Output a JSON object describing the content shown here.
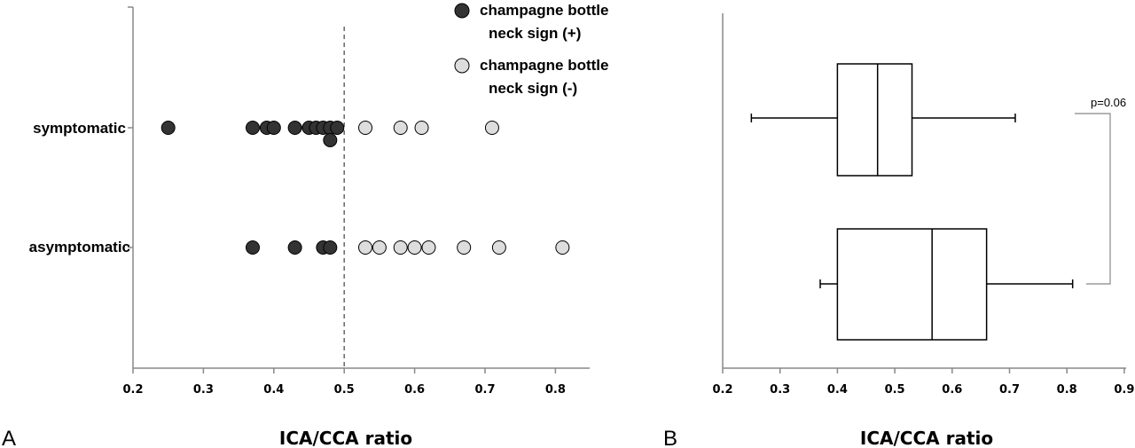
{
  "colors": {
    "positive": "#333333",
    "negative": "#dddddd",
    "axis": "#888888"
  },
  "chart_data": [
    {
      "panel": "A",
      "type": "scatter",
      "xlabel": "ICA/CCA ratio",
      "xlim": [
        0.2,
        0.85
      ],
      "xticks": [
        "0.2",
        "0.3",
        "0.4",
        "0.5",
        "0.6",
        "0.7",
        "0.8"
      ],
      "xtick_values": [
        0.2,
        0.3,
        0.4,
        0.5,
        0.6,
        0.7,
        0.8
      ],
      "categories": [
        "symptomatic",
        "asymptomatic"
      ],
      "reference_line_x": 0.5,
      "legend": [
        "champagne bottle neck sign (+)",
        "champagne bottle neck sign (-)"
      ],
      "series": [
        {
          "name": "champagne bottle neck sign (+)",
          "points": [
            {
              "category": "symptomatic",
              "x": 0.25
            },
            {
              "category": "symptomatic",
              "x": 0.37
            },
            {
              "category": "symptomatic",
              "x": 0.39
            },
            {
              "category": "symptomatic",
              "x": 0.4
            },
            {
              "category": "symptomatic",
              "x": 0.43
            },
            {
              "category": "symptomatic",
              "x": 0.45
            },
            {
              "category": "symptomatic",
              "x": 0.46
            },
            {
              "category": "symptomatic",
              "x": 0.47
            },
            {
              "category": "symptomatic",
              "x": 0.48
            },
            {
              "category": "symptomatic",
              "x": 0.49
            },
            {
              "category": "symptomatic",
              "x": 0.48
            },
            {
              "category": "asymptomatic",
              "x": 0.37
            },
            {
              "category": "asymptomatic",
              "x": 0.43
            },
            {
              "category": "asymptomatic",
              "x": 0.47
            },
            {
              "category": "asymptomatic",
              "x": 0.48
            }
          ]
        },
        {
          "name": "champagne bottle neck sign (-)",
          "points": [
            {
              "category": "symptomatic",
              "x": 0.53
            },
            {
              "category": "symptomatic",
              "x": 0.58
            },
            {
              "category": "symptomatic",
              "x": 0.61
            },
            {
              "category": "symptomatic",
              "x": 0.71
            },
            {
              "category": "asymptomatic",
              "x": 0.53
            },
            {
              "category": "asymptomatic",
              "x": 0.55
            },
            {
              "category": "asymptomatic",
              "x": 0.58
            },
            {
              "category": "asymptomatic",
              "x": 0.6
            },
            {
              "category": "asymptomatic",
              "x": 0.62
            },
            {
              "category": "asymptomatic",
              "x": 0.67
            },
            {
              "category": "asymptomatic",
              "x": 0.72
            },
            {
              "category": "asymptomatic",
              "x": 0.81
            }
          ]
        }
      ]
    },
    {
      "panel": "B",
      "type": "box",
      "xlabel": "ICA/CCA ratio",
      "xlim": [
        0.2,
        0.9
      ],
      "xticks": [
        "0.2",
        "0.3",
        "0.4",
        "0.5",
        "0.6",
        "0.7",
        "0.8",
        "0.9"
      ],
      "xtick_values": [
        0.2,
        0.3,
        0.4,
        0.5,
        0.6,
        0.7,
        0.8,
        0.9
      ],
      "boxes": [
        {
          "min": 0.25,
          "q1": 0.4,
          "median": 0.47,
          "q3": 0.53,
          "max": 0.71
        },
        {
          "min": 0.37,
          "q1": 0.4,
          "median": 0.565,
          "q3": 0.66,
          "max": 0.81
        }
      ],
      "annotation": "p=0.06"
    }
  ]
}
